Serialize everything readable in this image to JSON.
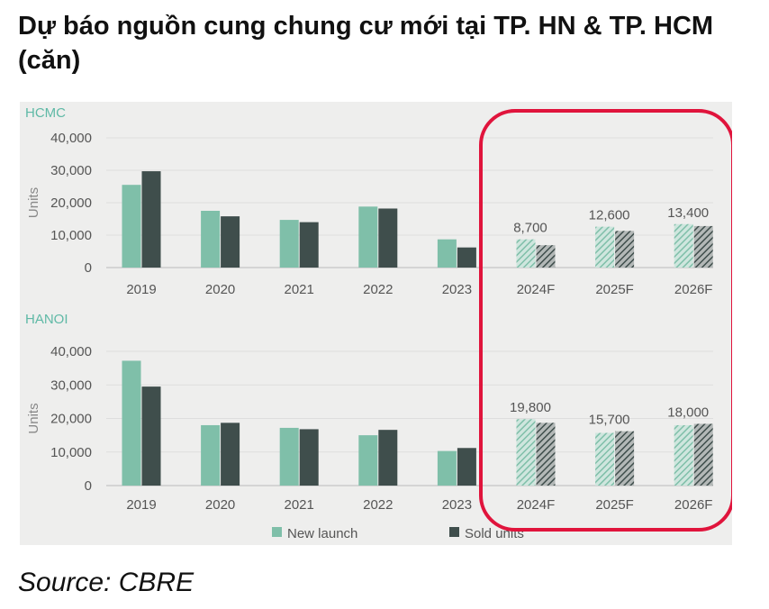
{
  "title": "Dự báo nguồn cung chung cư mới tại TP. HN & TP. HCM (căn)",
  "source": "Source: CBRE",
  "colors": {
    "new_launch": "#7fbfa9",
    "sold_units": "#3f4e4c",
    "highlight": "#e0143c",
    "region_label": "#5fb9a6",
    "background": "#eeeeed"
  },
  "legend": [
    {
      "name": "New launch",
      "color": "#7fbfa9"
    },
    {
      "name": "Sold units",
      "color": "#3f4e4c"
    }
  ],
  "chart_data": [
    {
      "type": "bar",
      "region": "HCMC",
      "ylabel": "Units",
      "ylim": [
        0,
        40000
      ],
      "yticks": [
        "40,000",
        "30,000",
        "20,000",
        "10,000",
        "0"
      ],
      "categories": [
        "2019",
        "2020",
        "2021",
        "2022",
        "2023",
        "2024F",
        "2025F",
        "2026F"
      ],
      "forecast_categories": [
        "2024F",
        "2025F",
        "2026F"
      ],
      "series": [
        {
          "name": "New launch",
          "values": [
            25500,
            17500,
            14700,
            18800,
            8700,
            8700,
            12600,
            13400
          ]
        },
        {
          "name": "Sold units",
          "values": [
            29700,
            15800,
            14000,
            18200,
            6200,
            6900,
            11300,
            12800
          ]
        }
      ],
      "data_labels": [
        "",
        "",
        "",
        "",
        "",
        "8,700",
        "12,600",
        "13,400"
      ]
    },
    {
      "type": "bar",
      "region": "HANOI",
      "ylabel": "Units",
      "ylim": [
        0,
        40000
      ],
      "yticks": [
        "40,000",
        "30,000",
        "20,000",
        "10,000",
        "0"
      ],
      "categories": [
        "2019",
        "2020",
        "2021",
        "2022",
        "2023",
        "2024F",
        "2025F",
        "2026F"
      ],
      "forecast_categories": [
        "2024F",
        "2025F",
        "2026F"
      ],
      "series": [
        {
          "name": "New launch",
          "values": [
            37200,
            18000,
            17200,
            15000,
            10300,
            19800,
            15700,
            18000
          ]
        },
        {
          "name": "Sold units",
          "values": [
            29500,
            18700,
            16800,
            16600,
            11200,
            18700,
            16200,
            18400
          ]
        }
      ],
      "data_labels": [
        "",
        "",
        "",
        "",
        "",
        "19,800",
        "15,700",
        "18,000"
      ]
    }
  ]
}
